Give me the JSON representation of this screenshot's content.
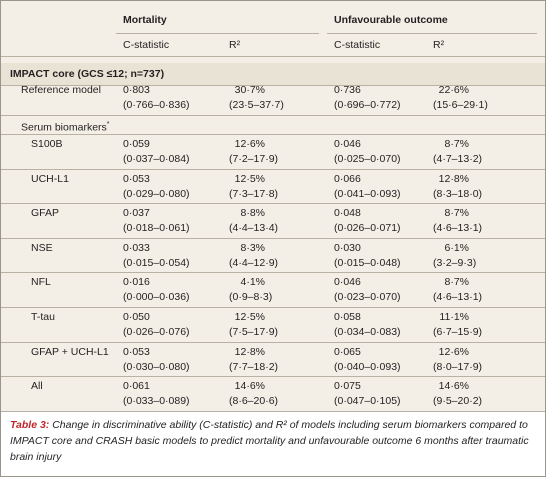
{
  "table": {
    "groups": [
      "Mortality",
      "Unfavourable outcome"
    ],
    "columns": [
      "C-statistic",
      "R²",
      "C-statistic",
      "R²"
    ],
    "section": "IMPACT core (GCS ≤12; n=737)",
    "reference": {
      "label": "Reference model",
      "cells": [
        [
          "0·803",
          "(0·766–0·836)"
        ],
        [
          "30·7%",
          "(23·5–37·7)"
        ],
        [
          "0·736",
          "(0·696–0·772)"
        ],
        [
          "22·6%",
          "(15·6–29·1)"
        ]
      ]
    },
    "subheading": {
      "text": "Serum biomarkers",
      "marker": "*"
    },
    "rows": [
      {
        "label": "S100B",
        "cells": [
          [
            "0·059",
            "(0·037–0·084)"
          ],
          [
            "12·6%",
            "(7·2–17·9)"
          ],
          [
            "0·046",
            "(0·025–0·070)"
          ],
          [
            "8·7%",
            "(4·7–13·2)"
          ]
        ]
      },
      {
        "label": "UCH-L1",
        "cells": [
          [
            "0·053",
            "(0·029–0·080)"
          ],
          [
            "12·5%",
            "(7·3–17·8)"
          ],
          [
            "0·066",
            "(0·041–0·093)"
          ],
          [
            "12·8%",
            "(8·3–18·0)"
          ]
        ]
      },
      {
        "label": "GFAP",
        "cells": [
          [
            "0·037",
            "(0·018–0·061)"
          ],
          [
            "8·8%",
            "(4·4–13·4)"
          ],
          [
            "0·048",
            "(0·026–0·071)"
          ],
          [
            "8·7%",
            "(4·6–13·1)"
          ]
        ]
      },
      {
        "label": "NSE",
        "cells": [
          [
            "0·033",
            "(0·015–0·054)"
          ],
          [
            "8·3%",
            "(4·4–12·9)"
          ],
          [
            "0·030",
            "(0·015–0·048)"
          ],
          [
            "6·1%",
            "(3·2–9·3)"
          ]
        ]
      },
      {
        "label": "NFL",
        "cells": [
          [
            "0·016",
            "(0·000–0·036)"
          ],
          [
            "4·1%",
            "(0·9–8·3)"
          ],
          [
            "0·046",
            "(0·023–0·070)"
          ],
          [
            "8·7%",
            "(4·6–13·1)"
          ]
        ]
      },
      {
        "label": "T-tau",
        "cells": [
          [
            "0·050",
            "(0·026–0·076)"
          ],
          [
            "12·5%",
            "(7·5–17·9)"
          ],
          [
            "0·058",
            "(0·034–0·083)"
          ],
          [
            "11·1%",
            "(6·7–15·9)"
          ]
        ]
      },
      {
        "label": "GFAP + UCH-L1",
        "cells": [
          [
            "0·053",
            "(0·030–0·080)"
          ],
          [
            "12·8%",
            "(7·7–18·2)"
          ],
          [
            "0·065",
            "(0·040–0·093)"
          ],
          [
            "12·6%",
            "(8·0–17·9)"
          ]
        ]
      },
      {
        "label": "All",
        "cells": [
          [
            "0·061",
            "(0·033–0·089)"
          ],
          [
            "14·6%",
            "(8·6–20·6)"
          ],
          [
            "0·075",
            "(0·047–0·105)"
          ],
          [
            "14·6%",
            "(9·5–20·2)"
          ]
        ]
      }
    ]
  },
  "caption": {
    "label": "Table 3:",
    "text": "Change in discriminative ability (C-statistic) and R² of models including serum biomarkers compared to IMPACT core and CRASH basic models to predict mortality and unfavourable outcome 6 months after traumatic brain injury"
  }
}
